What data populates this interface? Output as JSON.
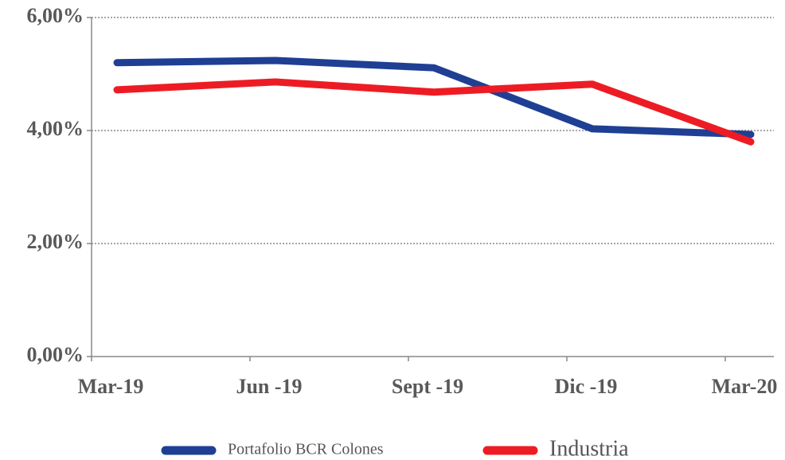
{
  "chart_data": {
    "type": "line",
    "categories": [
      "Mar-19",
      "Jun -19",
      "Sept -19",
      "Dic -19",
      "Mar-20"
    ],
    "series": [
      {
        "name": "Portafolio BCR Colones",
        "color": "#1f3f94",
        "values": [
          5.2,
          5.24,
          5.11,
          4.03,
          3.93
        ]
      },
      {
        "name": "Industria",
        "color": "#ed1c24",
        "values": [
          4.72,
          4.86,
          4.68,
          4.82,
          3.8
        ]
      }
    ],
    "ylim": [
      0,
      6
    ],
    "yticks": [
      {
        "value": 0,
        "label": "0,00%"
      },
      {
        "value": 2,
        "label": "2,00%"
      },
      {
        "value": 4,
        "label": "4,00%"
      },
      {
        "value": 6,
        "label": "6,00%"
      }
    ],
    "grid": true,
    "legend": "bottom"
  }
}
